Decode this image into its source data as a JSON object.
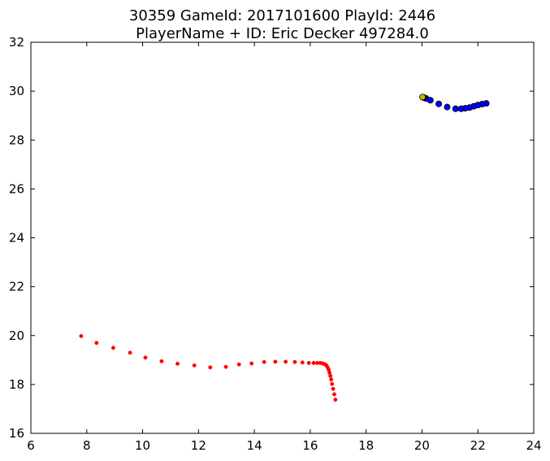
{
  "chart_data": {
    "type": "scatter",
    "title_lines": [
      "30359 GameId: 2017101600 PlayId: 2446",
      "PlayerName + ID: Eric Decker 497284.0"
    ],
    "xlabel": "",
    "ylabel": "",
    "xlim": [
      6,
      24
    ],
    "ylim": [
      16,
      32
    ],
    "xticks": [
      6,
      8,
      10,
      12,
      14,
      16,
      18,
      20,
      22,
      24
    ],
    "yticks": [
      16,
      18,
      20,
      22,
      24,
      26,
      28,
      30,
      32
    ],
    "grid": false,
    "series": [
      {
        "color": "#ff0000",
        "marker": "small-dot",
        "points": [
          [
            7.8,
            19.98
          ],
          [
            8.35,
            19.7
          ],
          [
            8.95,
            19.5
          ],
          [
            9.55,
            19.3
          ],
          [
            10.1,
            19.1
          ],
          [
            10.68,
            18.95
          ],
          [
            11.25,
            18.85
          ],
          [
            11.85,
            18.78
          ],
          [
            12.42,
            18.7
          ],
          [
            12.98,
            18.72
          ],
          [
            13.45,
            18.82
          ],
          [
            13.9,
            18.86
          ],
          [
            14.35,
            18.92
          ],
          [
            14.75,
            18.93
          ],
          [
            15.12,
            18.93
          ],
          [
            15.45,
            18.92
          ],
          [
            15.72,
            18.9
          ],
          [
            15.95,
            18.88
          ],
          [
            16.12,
            18.88
          ],
          [
            16.25,
            18.88
          ],
          [
            16.36,
            18.88
          ],
          [
            16.44,
            18.86
          ],
          [
            16.52,
            18.83
          ],
          [
            16.58,
            18.78
          ],
          [
            16.62,
            18.7
          ],
          [
            16.66,
            18.6
          ],
          [
            16.69,
            18.48
          ],
          [
            16.72,
            18.35
          ],
          [
            16.75,
            18.2
          ],
          [
            16.78,
            18.02
          ],
          [
            16.82,
            17.82
          ],
          [
            16.86,
            17.6
          ],
          [
            16.9,
            17.38
          ]
        ]
      },
      {
        "color": "#0000ff",
        "marker": "circle",
        "points": [
          [
            22.3,
            29.5
          ],
          [
            22.15,
            29.47
          ],
          [
            22.0,
            29.43
          ],
          [
            21.85,
            29.38
          ],
          [
            21.7,
            29.33
          ],
          [
            21.55,
            29.3
          ],
          [
            21.4,
            29.28
          ],
          [
            21.2,
            29.28
          ],
          [
            20.9,
            29.35
          ],
          [
            20.6,
            29.48
          ],
          [
            20.3,
            29.63
          ],
          [
            20.15,
            29.7
          ],
          [
            20.08,
            29.73
          ],
          [
            20.04,
            29.75
          ]
        ]
      },
      {
        "color": "#bfbf00",
        "marker": "circle",
        "points": [
          [
            20.02,
            29.76
          ]
        ]
      }
    ]
  }
}
